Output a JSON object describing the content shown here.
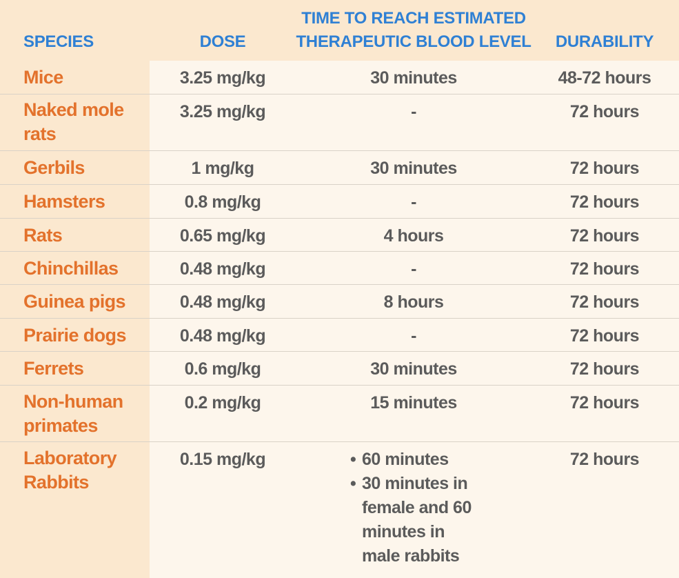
{
  "headers": {
    "species": "SPECIES",
    "dose": "DOSE",
    "time_line1": "TIME TO REACH ESTIMATED",
    "time_line2": "THERAPEUTIC BLOOD LEVEL",
    "durability": "DURABILITY"
  },
  "rows": [
    {
      "species": "Mice",
      "dose": "3.25 mg/kg",
      "time": "30 minutes",
      "durability": "48-72 hours"
    },
    {
      "species": "Naked mole rats",
      "dose": "3.25 mg/kg",
      "time": "-",
      "durability": "72 hours"
    },
    {
      "species": "Gerbils",
      "dose": "1 mg/kg",
      "time": "30 minutes",
      "durability": "72 hours"
    },
    {
      "species": "Hamsters",
      "dose": "0.8 mg/kg",
      "time": "-",
      "durability": "72 hours"
    },
    {
      "species": "Rats",
      "dose": "0.65 mg/kg",
      "time": "4 hours",
      "durability": "72 hours"
    },
    {
      "species": "Chinchillas",
      "dose": "0.48 mg/kg",
      "time": "-",
      "durability": "72 hours"
    },
    {
      "species": "Guinea pigs",
      "dose": "0.48 mg/kg",
      "time": "8 hours",
      "durability": "72 hours"
    },
    {
      "species": "Prairie dogs",
      "dose": "0.48 mg/kg",
      "time": "-",
      "durability": "72 hours"
    },
    {
      "species": "Ferrets",
      "dose": "0.6 mg/kg",
      "time": "30 minutes",
      "durability": "72 hours"
    },
    {
      "species": "Non-human primates",
      "dose": "0.2 mg/kg",
      "time": "15 minutes",
      "durability": "72 hours"
    },
    {
      "species": "Laboratory Rabbits",
      "dose": "0.15 mg/kg",
      "time_list": [
        "60 minutes",
        "30 minutes in female and 60 minutes in male rabbits"
      ],
      "durability": "72 hours"
    }
  ],
  "colors": {
    "header_text": "#2f80d4",
    "species_text": "#e3722c",
    "body_text": "#5b5b5b",
    "band_background": "#fbe8cf",
    "page_background": "#fdf6ec"
  }
}
